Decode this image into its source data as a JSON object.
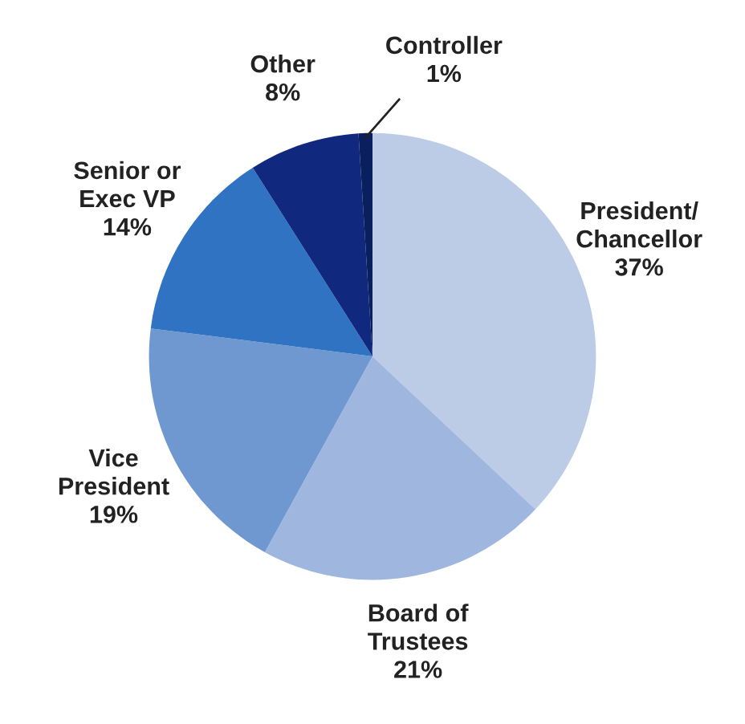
{
  "chart_data": {
    "type": "pie",
    "categories": [
      "President/\nChancellor",
      "Board of\nTrustees",
      "Vice\nPresident",
      "Senior or\nExec VP",
      "Other",
      "Controller"
    ],
    "values": [
      37,
      21,
      19,
      14,
      8,
      1
    ],
    "colors": [
      "#bccbe6",
      "#9fb7de",
      "#6f98d0",
      "#2f73c2",
      "#10287e",
      "#0a1f5e"
    ],
    "value_labels": [
      "37%",
      "21%",
      "19%",
      "14%",
      "8%",
      "1%"
    ]
  }
}
